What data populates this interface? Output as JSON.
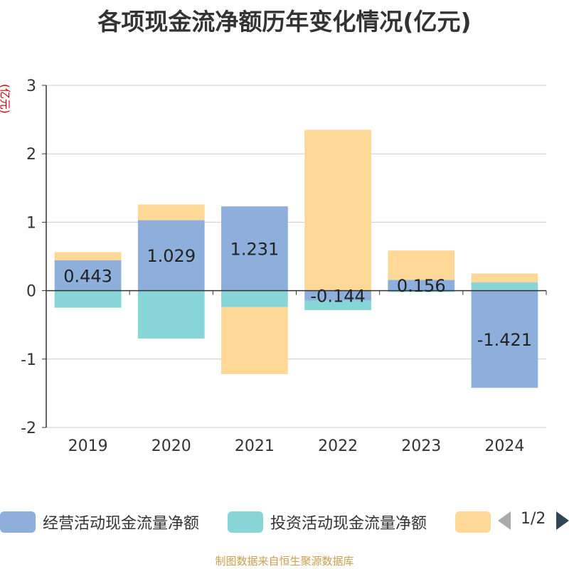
{
  "chart_data": {
    "type": "bar",
    "stacked": true,
    "title": "各项现金流净额历年变化情况(亿元)",
    "ylabel": "(亿元)",
    "ylim": [
      -2,
      3
    ],
    "yticks": [
      3,
      2,
      1,
      0,
      -1,
      -2
    ],
    "categories": [
      "2019",
      "2020",
      "2021",
      "2022",
      "2023",
      "2024"
    ],
    "series": [
      {
        "name": "经营活动现金流量净额",
        "color": "#8eaedb",
        "values": [
          0.443,
          1.029,
          1.231,
          -0.144,
          0.156,
          -1.421
        ],
        "data_labels": [
          "0.443",
          "1.029",
          "1.231",
          "-0.144",
          "0.156",
          "-1.421"
        ]
      },
      {
        "name": "投资活动现金流量净额",
        "color": "#88d5d8",
        "values": [
          -0.25,
          -0.7,
          -0.24,
          -0.14,
          -0.02,
          0.12
        ]
      },
      {
        "name": "",
        "color": "#fed897",
        "values": [
          0.12,
          0.23,
          -0.98,
          2.35,
          0.43,
          0.13
        ]
      }
    ]
  },
  "legend": {
    "page_label": "1/2"
  },
  "source_note": "制图数据来自恒生聚源数据库"
}
